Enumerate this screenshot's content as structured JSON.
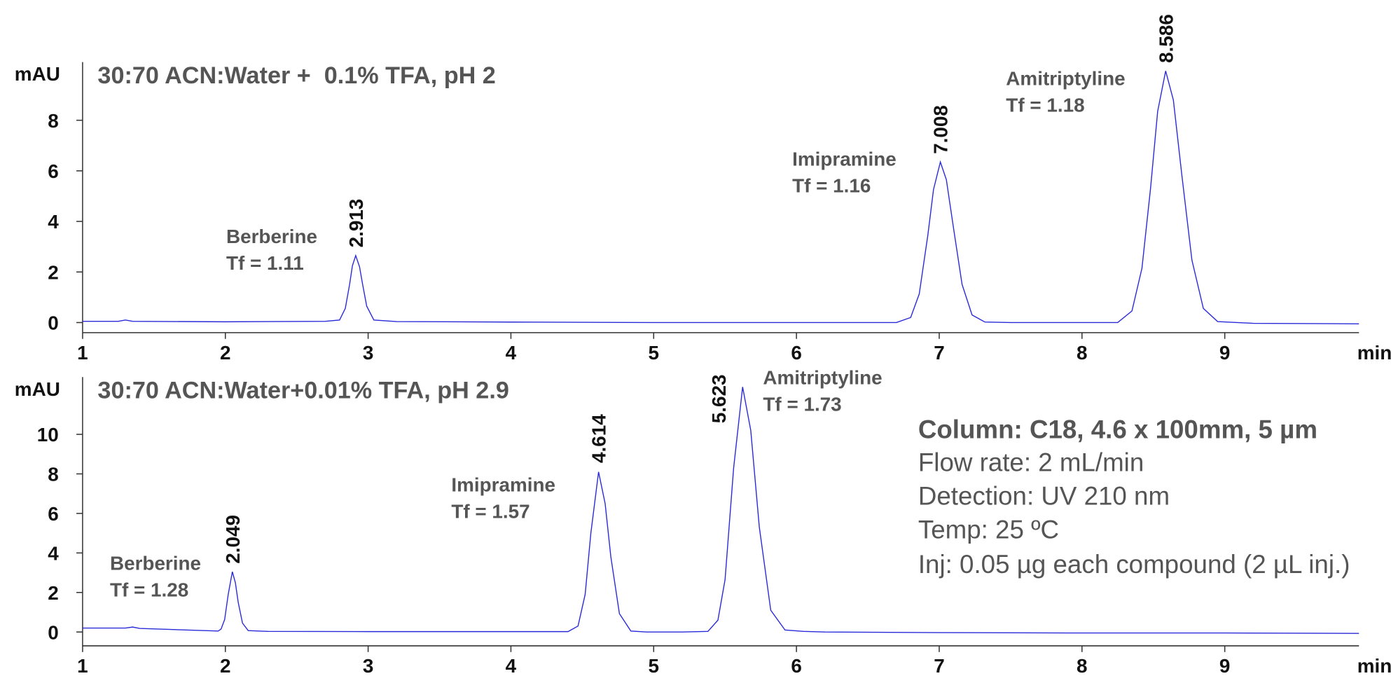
{
  "chart_data": [
    {
      "type": "line",
      "title": "30:70 ACN:Water +  0.1% TFA, pH 2",
      "y_label": "mAU",
      "x_label": "min",
      "color": "#2a2ad8",
      "x": [
        1,
        1.25,
        1.3,
        1.35,
        2,
        2.7,
        2.8,
        2.84,
        2.87,
        2.89,
        2.913,
        2.94,
        2.96,
        2.99,
        3.04,
        3.2,
        4,
        5,
        6,
        6.7,
        6.8,
        6.86,
        6.92,
        6.96,
        7.008,
        7.05,
        7.1,
        7.16,
        7.23,
        7.32,
        7.5,
        8,
        8.25,
        8.35,
        8.42,
        8.48,
        8.53,
        8.586,
        8.64,
        8.7,
        8.77,
        8.85,
        8.95,
        9.2,
        9.94
      ],
      "values": [
        0.05,
        0.05,
        0.1,
        0.05,
        0.03,
        0.05,
        0.1,
        0.56,
        1.5,
        2.25,
        2.65,
        2.2,
        1.55,
        0.65,
        0.1,
        0.04,
        0.02,
        0,
        0,
        0,
        0.2,
        1.13,
        3.44,
        5.26,
        6.35,
        5.65,
        3.74,
        1.51,
        0.3,
        0.02,
        0,
        0,
        0,
        0.46,
        2.15,
        5.3,
        8.35,
        9.95,
        8.8,
        5.8,
        2.47,
        0.56,
        0.04,
        -0.03,
        -0.05
      ],
      "xlim": [
        1,
        9.94
      ],
      "ylim": [
        -0.4,
        10.3
      ],
      "xticks": [
        1,
        2,
        3,
        4,
        5,
        6,
        7,
        8,
        9
      ],
      "yticks": [
        0,
        2,
        4,
        6,
        8
      ],
      "peaks": [
        {
          "name": "Berberine",
          "tf": "Tf = 1.11",
          "rt": 2.913
        },
        {
          "name": "Imipramine",
          "tf": "Tf = 1.16",
          "rt": 7.008
        },
        {
          "name": "Amitriptyline",
          "tf": "Tf = 1.18",
          "rt": 8.586
        }
      ]
    },
    {
      "type": "line",
      "title": "30:70 ACN:Water+0.01% TFA, pH 2.9",
      "y_label": "mAU",
      "x_label": "min",
      "color": "#2a2ad8",
      "x": [
        1,
        1.3,
        1.35,
        1.4,
        1.95,
        1.97,
        1.995,
        2.02,
        2.049,
        2.07,
        2.09,
        2.12,
        2.16,
        2.3,
        3,
        4,
        4.4,
        4.47,
        4.52,
        4.56,
        4.614,
        4.66,
        4.7,
        4.76,
        4.84,
        4.95,
        5.2,
        5.38,
        5.45,
        5.5,
        5.56,
        5.623,
        5.68,
        5.74,
        5.82,
        5.92,
        6.05,
        6.2,
        7,
        8,
        9,
        9.94
      ],
      "values": [
        0.2,
        0.2,
        0.25,
        0.18,
        0.05,
        0.15,
        0.63,
        1.9,
        3.05,
        2.5,
        1.5,
        0.45,
        0.07,
        0.03,
        0.02,
        0.02,
        0.02,
        0.3,
        1.9,
        5,
        8.1,
        6.5,
        3.8,
        0.93,
        0.05,
        0,
        0,
        0.03,
        0.6,
        2.65,
        8.3,
        12.4,
        10.2,
        5.3,
        1.1,
        0.1,
        0.03,
        0,
        -0.03,
        -0.05,
        -0.05,
        -0.07
      ],
      "xlim": [
        1,
        9.94
      ],
      "ylim": [
        -0.7,
        12.9
      ],
      "xticks": [
        1,
        2,
        3,
        4,
        5,
        6,
        7,
        8,
        9
      ],
      "yticks": [
        0,
        2,
        4,
        6,
        8,
        10
      ],
      "peaks": [
        {
          "name": "Berberine",
          "tf": "Tf = 1.28",
          "rt": 2.049
        },
        {
          "name": "Imipramine",
          "tf": "Tf = 1.57",
          "rt": 4.614
        },
        {
          "name": "Amitriptyline",
          "tf": "Tf = 1.73",
          "rt": 5.623
        }
      ]
    }
  ],
  "conditions": {
    "column": "Column: C18, 4.6 x 100mm, 5 µm",
    "lines": [
      "Flow rate: 2 mL/min",
      "Detection: UV 210 nm",
      "Temp: 25 ºC",
      "Inj: 0.05 µg each compound (2 µL inj.)"
    ]
  }
}
